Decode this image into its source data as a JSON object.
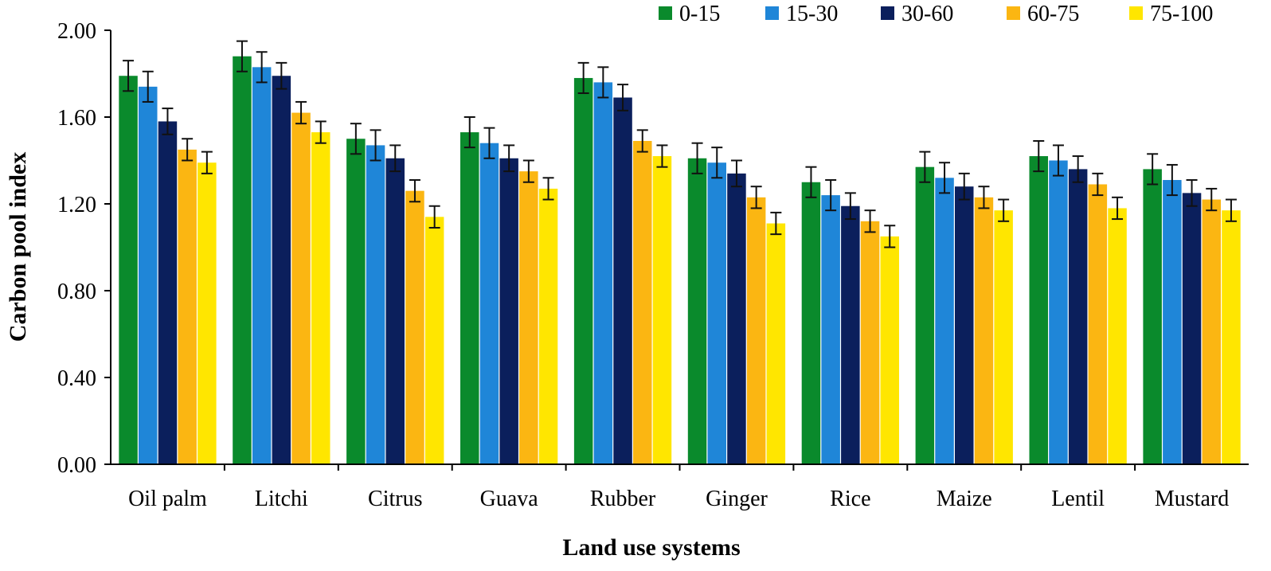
{
  "chart_data": {
    "type": "bar",
    "title": "",
    "xlabel": "Land use systems",
    "ylabel": "Carbon pool index",
    "ylim": [
      0,
      2
    ],
    "yticks": [
      "0.00",
      "0.40",
      "0.80",
      "1.20",
      "1.60",
      "2.00"
    ],
    "ytick_values": [
      0,
      0.4,
      0.8,
      1.2,
      1.6,
      2.0
    ],
    "grid": false,
    "legend_position": "top-right",
    "categories": [
      "Oil palm",
      "Litchi",
      "Citrus",
      "Guava",
      "Rubber",
      "Ginger",
      "Rice",
      "Maize",
      "Lentil",
      "Mustard"
    ],
    "series": [
      {
        "name": "0-15",
        "color": "#0a8a2c",
        "values": [
          1.79,
          1.88,
          1.5,
          1.53,
          1.78,
          1.41,
          1.3,
          1.37,
          1.42,
          1.36
        ],
        "errors": [
          0.07,
          0.07,
          0.07,
          0.07,
          0.07,
          0.07,
          0.07,
          0.07,
          0.07,
          0.07
        ]
      },
      {
        "name": "15-30",
        "color": "#1f86d8",
        "values": [
          1.74,
          1.83,
          1.47,
          1.48,
          1.76,
          1.39,
          1.24,
          1.32,
          1.4,
          1.31
        ],
        "errors": [
          0.07,
          0.07,
          0.07,
          0.07,
          0.07,
          0.07,
          0.07,
          0.07,
          0.07,
          0.07
        ]
      },
      {
        "name": "30-60",
        "color": "#0b1f5c",
        "values": [
          1.58,
          1.79,
          1.41,
          1.41,
          1.69,
          1.34,
          1.19,
          1.28,
          1.36,
          1.25
        ],
        "errors": [
          0.06,
          0.06,
          0.06,
          0.06,
          0.06,
          0.06,
          0.06,
          0.06,
          0.06,
          0.06
        ]
      },
      {
        "name": "60-75",
        "color": "#fbb612",
        "values": [
          1.45,
          1.62,
          1.26,
          1.35,
          1.49,
          1.23,
          1.12,
          1.23,
          1.29,
          1.22
        ],
        "errors": [
          0.05,
          0.05,
          0.05,
          0.05,
          0.05,
          0.05,
          0.05,
          0.05,
          0.05,
          0.05
        ]
      },
      {
        "name": "75-100",
        "color": "#ffe600",
        "values": [
          1.39,
          1.53,
          1.14,
          1.27,
          1.42,
          1.11,
          1.05,
          1.17,
          1.18,
          1.17
        ],
        "errors": [
          0.05,
          0.05,
          0.05,
          0.05,
          0.05,
          0.05,
          0.05,
          0.05,
          0.05,
          0.05
        ]
      }
    ]
  }
}
